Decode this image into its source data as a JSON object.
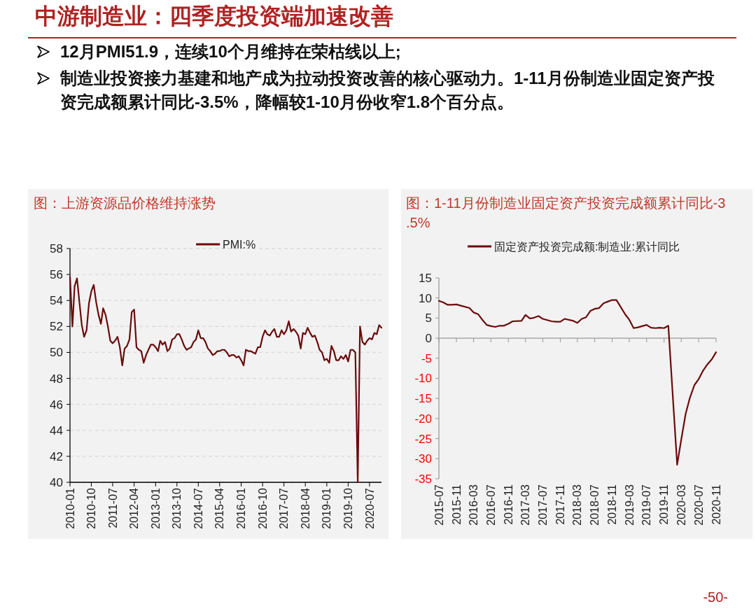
{
  "chart_data": [
    {
      "type": "line",
      "title": "图：上游资源品价格维持涨势",
      "annotations": [
        "中游制造业：四季度投资端加速改善",
        "12月PMI51.9，连续10个月维持在荣枯线以上;",
        "制造业投资接力基建和地产成为拉动投资改善的核心驱动力。1-11月份制造业固定资产投资完成额累计同比-3.5%，降幅较1-10月份收窄1.8个百分点。"
      ],
      "x": [
        "2010-01",
        "2010-02",
        "2010-03",
        "2010-04",
        "2010-05",
        "2010-06",
        "2010-07",
        "2010-08",
        "2010-09",
        "2010-10",
        "2010-11",
        "2010-12",
        "2011-01",
        "2011-02",
        "2011-03",
        "2011-04",
        "2011-05",
        "2011-06",
        "2011-07",
        "2011-08",
        "2011-09",
        "2011-10",
        "2011-11",
        "2011-12",
        "2012-01",
        "2012-02",
        "2012-03",
        "2012-04",
        "2012-05",
        "2012-06",
        "2012-07",
        "2012-08",
        "2012-09",
        "2012-10",
        "2012-11",
        "2012-12",
        "2013-01",
        "2013-02",
        "2013-03",
        "2013-04",
        "2013-05",
        "2013-06",
        "2013-07",
        "2013-08",
        "2013-09",
        "2013-10",
        "2013-11",
        "2013-12",
        "2014-01",
        "2014-02",
        "2014-03",
        "2014-04",
        "2014-05",
        "2014-06",
        "2014-07",
        "2014-08",
        "2014-09",
        "2014-10",
        "2014-11",
        "2014-12",
        "2015-01",
        "2015-02",
        "2015-03",
        "2015-04",
        "2015-05",
        "2015-06",
        "2015-07",
        "2015-08",
        "2015-09",
        "2015-10",
        "2015-11",
        "2015-12",
        "2016-01",
        "2016-02",
        "2016-03",
        "2016-04",
        "2016-05",
        "2016-06",
        "2016-07",
        "2016-08",
        "2016-09",
        "2016-10",
        "2016-11",
        "2016-12",
        "2017-01",
        "2017-02",
        "2017-03",
        "2017-04",
        "2017-05",
        "2017-06",
        "2017-07",
        "2017-08",
        "2017-09",
        "2017-10",
        "2017-11",
        "2017-12",
        "2018-01",
        "2018-02",
        "2018-03",
        "2018-04",
        "2018-05",
        "2018-06",
        "2018-07",
        "2018-08",
        "2018-09",
        "2018-10",
        "2018-11",
        "2018-12",
        "2019-01",
        "2019-02",
        "2019-03",
        "2019-04",
        "2019-05",
        "2019-06",
        "2019-07",
        "2019-08",
        "2019-09",
        "2019-10",
        "2019-11",
        "2019-12",
        "2020-01",
        "2020-02",
        "2020-03",
        "2020-04",
        "2020-05",
        "2020-06",
        "2020-07",
        "2020-08",
        "2020-09",
        "2020-10",
        "2020-11",
        "2020-12"
      ],
      "series": [
        {
          "name": "PMI:%",
          "color": "#6b0a0a",
          "values": [
            55.8,
            52.0,
            55.1,
            55.7,
            53.9,
            52.1,
            51.2,
            51.7,
            53.8,
            54.7,
            55.2,
            53.9,
            52.9,
            52.2,
            53.4,
            52.9,
            52.0,
            50.9,
            50.7,
            50.9,
            51.2,
            50.4,
            49.0,
            50.3,
            50.5,
            51.0,
            53.1,
            53.3,
            50.4,
            50.2,
            50.1,
            49.2,
            49.8,
            50.2,
            50.6,
            50.6,
            50.4,
            50.1,
            50.9,
            50.6,
            50.8,
            50.1,
            50.3,
            51.0,
            51.1,
            51.4,
            51.4,
            51.0,
            50.5,
            50.2,
            50.3,
            50.4,
            50.8,
            51.0,
            51.7,
            51.1,
            51.1,
            50.8,
            50.3,
            50.1,
            49.8,
            49.9,
            50.1,
            50.1,
            50.2,
            50.2,
            50.0,
            49.7,
            49.8,
            49.8,
            49.6,
            49.7,
            49.4,
            49.0,
            50.2,
            50.1,
            50.1,
            50.0,
            49.9,
            50.4,
            50.4,
            51.2,
            51.7,
            51.4,
            51.3,
            51.6,
            51.8,
            51.2,
            51.2,
            51.7,
            51.4,
            51.7,
            52.4,
            51.6,
            51.8,
            51.6,
            51.3,
            50.3,
            51.5,
            51.4,
            51.9,
            51.5,
            51.2,
            51.3,
            50.8,
            50.2,
            50.0,
            49.4,
            49.5,
            49.2,
            50.5,
            50.1,
            49.4,
            49.4,
            49.7,
            49.5,
            49.8,
            49.3,
            50.2,
            50.2,
            50.0,
            40,
            52.0,
            50.8,
            50.6,
            50.9,
            51.1,
            51.0,
            51.5,
            51.4,
            52.1,
            51.9
          ]
        }
      ],
      "xlim": [
        "2010-01",
        "2020-12"
      ],
      "xticks": [
        "2010-01",
        "2010-10",
        "2011-07",
        "2012-04",
        "2013-01",
        "2013-10",
        "2014-07",
        "2015-04",
        "2016-01",
        "2016-10",
        "2017-07",
        "2018-04",
        "2019-01",
        "2019-10",
        "2020-07"
      ],
      "ylim": [
        40,
        58
      ],
      "yticks": [
        40,
        42,
        44,
        46,
        48,
        50,
        52,
        54,
        56,
        58
      ],
      "grid": "y",
      "legend": "top"
    },
    {
      "type": "line",
      "title": "图：1-11月份制造业固定资产投资完成额累计同比-3.5%",
      "annotations": [
        "-50-"
      ],
      "x": [
        "2015-07",
        "2015-08",
        "2015-09",
        "2015-10",
        "2015-11",
        "2015-12",
        "2016-02",
        "2016-03",
        "2016-04",
        "2016-05",
        "2016-06",
        "2016-07",
        "2016-08",
        "2016-09",
        "2016-10",
        "2016-11",
        "2016-12",
        "2017-02",
        "2017-03",
        "2017-04",
        "2017-05",
        "2017-06",
        "2017-07",
        "2017-08",
        "2017-09",
        "2017-10",
        "2017-11",
        "2017-12",
        "2018-02",
        "2018-03",
        "2018-04",
        "2018-05",
        "2018-06",
        "2018-07",
        "2018-08",
        "2018-09",
        "2018-10",
        "2018-11",
        "2018-12",
        "2019-02",
        "2019-03",
        "2019-04",
        "2019-05",
        "2019-06",
        "2019-07",
        "2019-08",
        "2019-09",
        "2019-10",
        "2019-11",
        "2019-12",
        "2020-02",
        "2020-03",
        "2020-04",
        "2020-05",
        "2020-06",
        "2020-07",
        "2020-08",
        "2020-09",
        "2020-10",
        "2020-11"
      ],
      "series": [
        {
          "name": "固定资产投资完成额:制造业:累计同比",
          "color": "#6b0a0a",
          "values": [
            9.3,
            8.9,
            8.3,
            8.3,
            8.4,
            8.1,
            7.5,
            6.4,
            6.0,
            4.6,
            3.3,
            3.0,
            2.8,
            3.1,
            3.1,
            3.6,
            4.2,
            4.3,
            5.8,
            4.9,
            5.1,
            5.5,
            4.8,
            4.5,
            4.2,
            4.1,
            4.1,
            4.8,
            4.3,
            3.8,
            4.8,
            5.2,
            6.8,
            7.3,
            7.5,
            8.7,
            9.1,
            9.5,
            9.5,
            5.9,
            4.6,
            2.5,
            2.7,
            3.0,
            3.3,
            2.6,
            2.5,
            2.6,
            2.5,
            3.1,
            -31.5,
            -25.2,
            -18.8,
            -14.8,
            -11.7,
            -10.2,
            -8.1,
            -6.5,
            -5.3,
            -3.5
          ]
        }
      ],
      "xlim": [
        "2015-07",
        "2020-11"
      ],
      "xticks": [
        "2015-07",
        "2015-11",
        "2016-03",
        "2016-07",
        "2016-11",
        "2017-03",
        "2017-07",
        "2017-11",
        "2018-03",
        "2018-07",
        "2018-11",
        "2019-03",
        "2019-07",
        "2019-11",
        "2020-03",
        "2020-07",
        "2020-11"
      ],
      "ylim": [
        -35,
        15
      ],
      "yticks": [
        -35,
        -30,
        -25,
        -20,
        -15,
        -10,
        -5,
        0,
        5,
        10,
        15
      ],
      "legend": "top"
    }
  ]
}
